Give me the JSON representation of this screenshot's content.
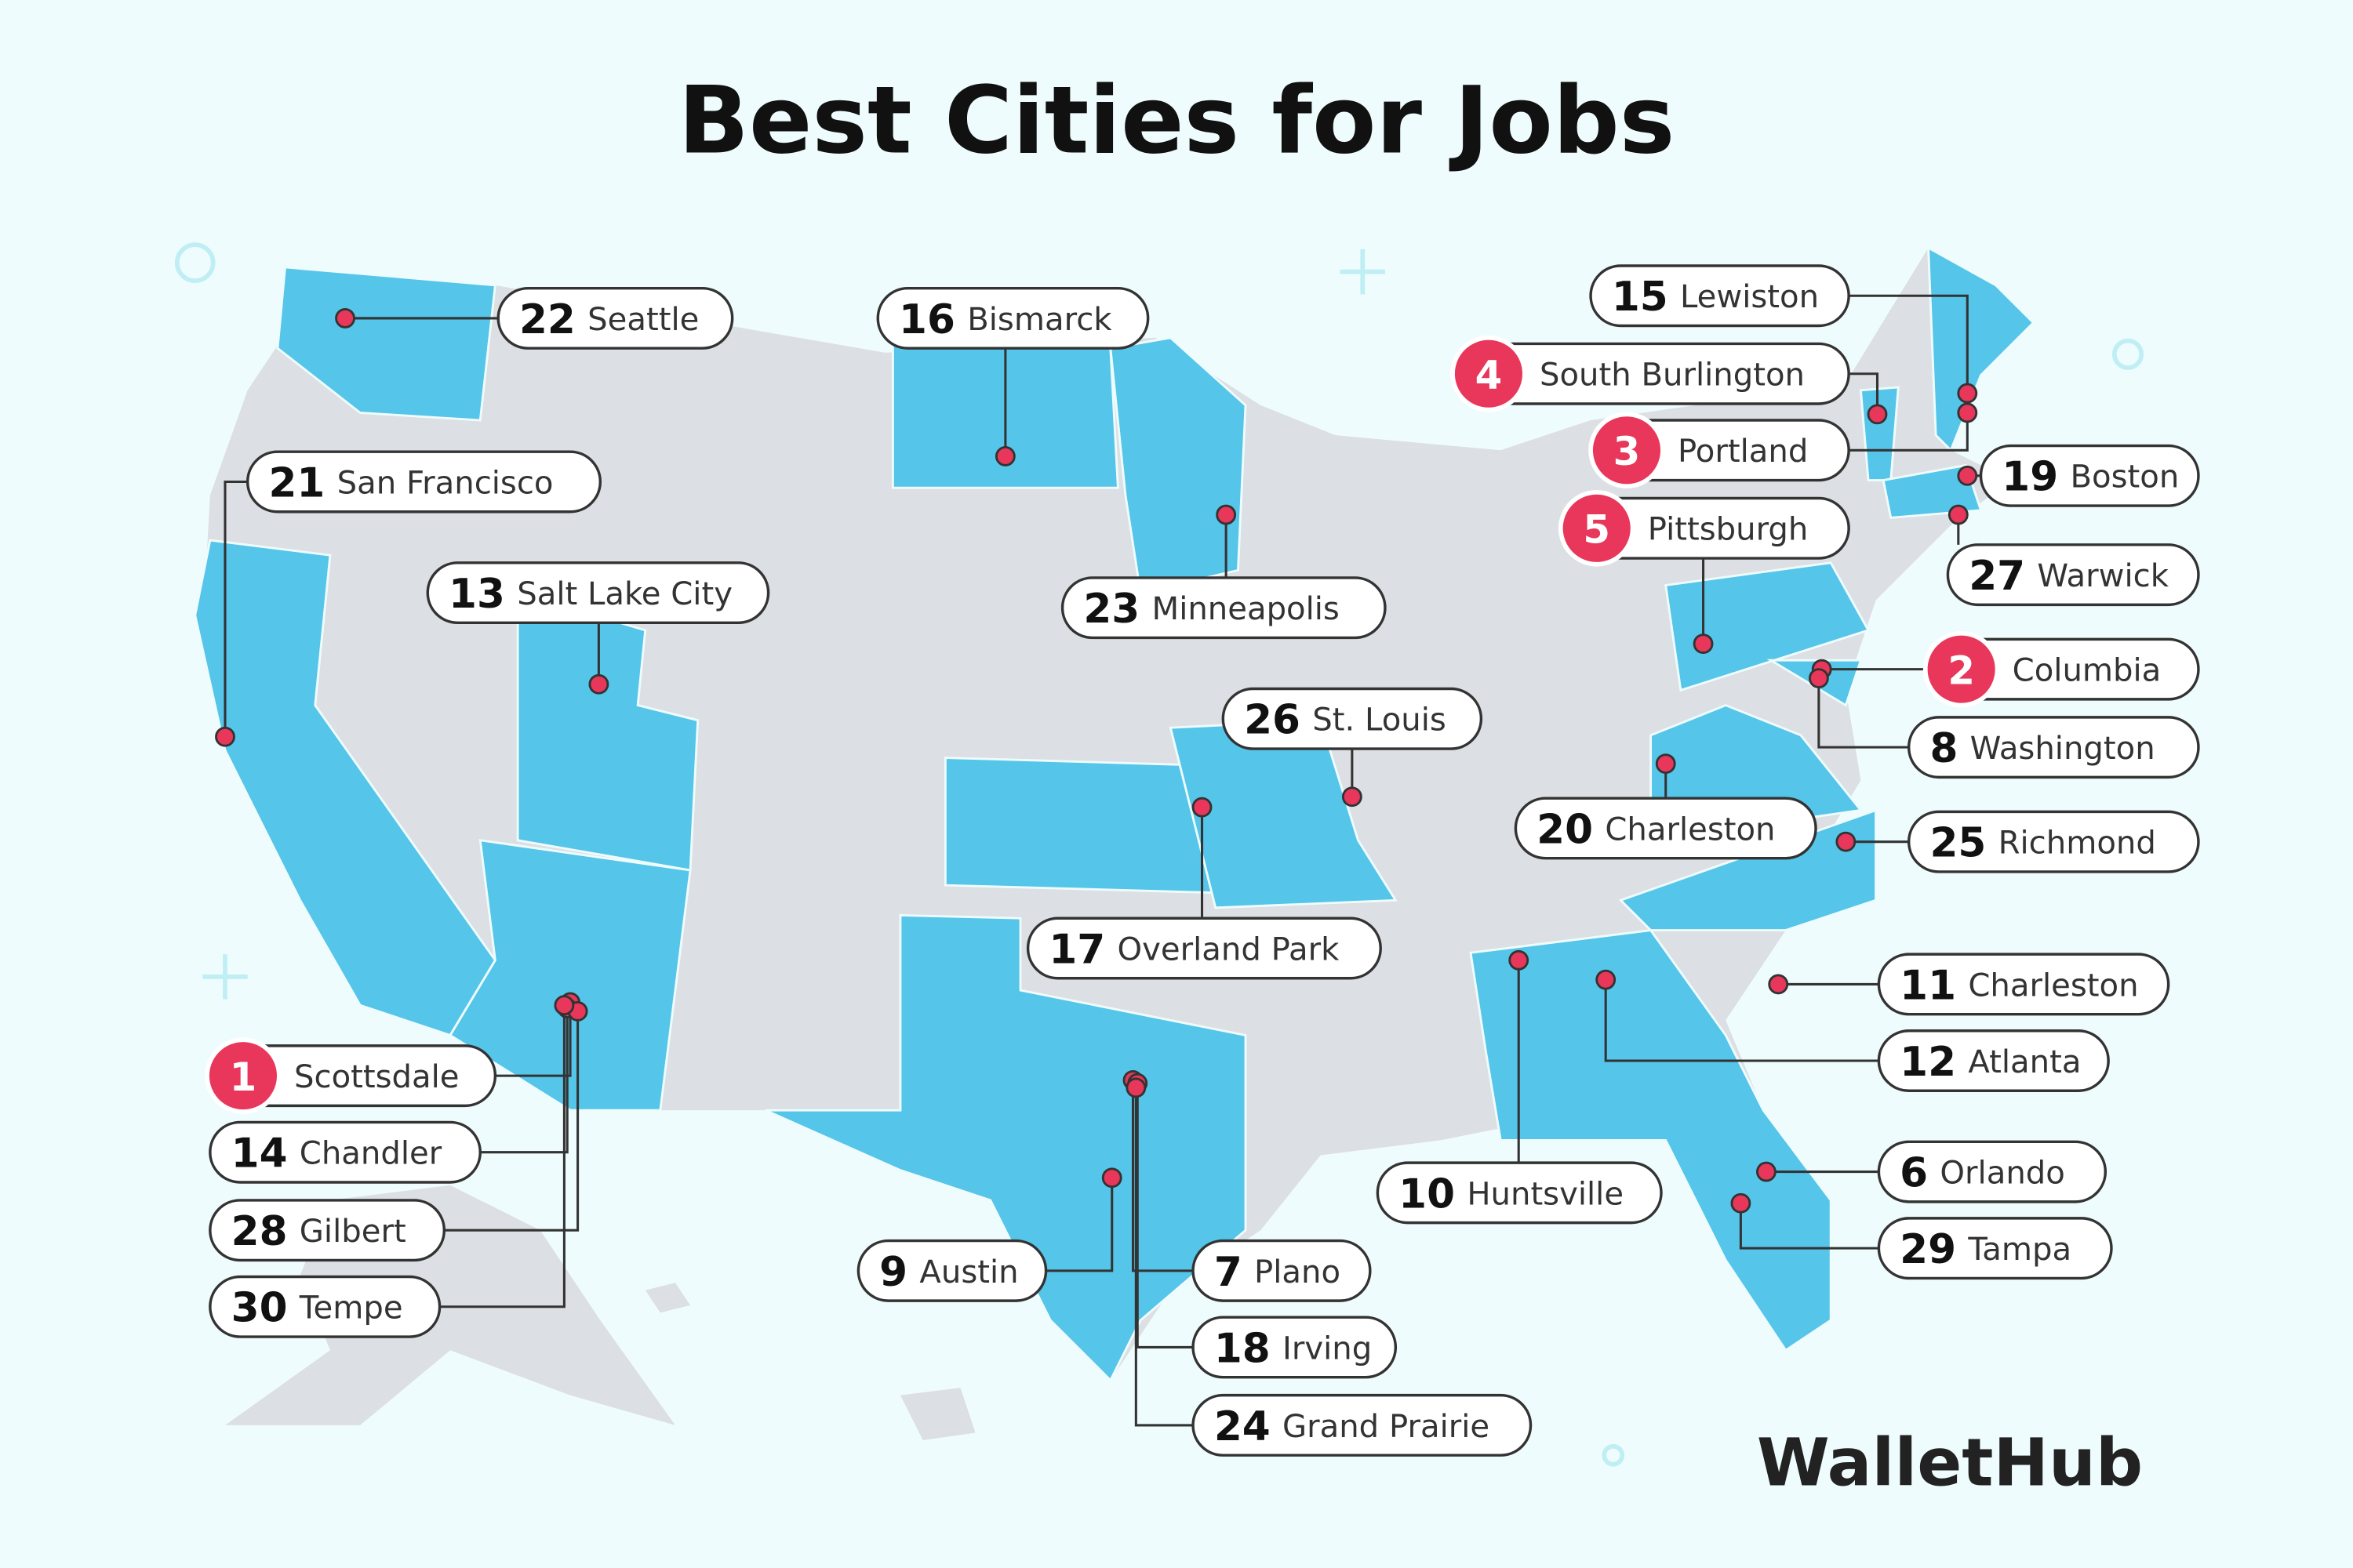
{
  "header": {
    "title": "Best Cities for Jobs"
  },
  "cities": [
    {
      "rank": 1,
      "name": "Scottsdale"
    },
    {
      "rank": 2,
      "name": "Columbia"
    },
    {
      "rank": 3,
      "name": "Portland"
    },
    {
      "rank": 4,
      "name": "South Burlington"
    },
    {
      "rank": 5,
      "name": "Pittsburgh"
    },
    {
      "rank": 6,
      "name": "Orlando"
    },
    {
      "rank": 7,
      "name": "Plano"
    },
    {
      "rank": 8,
      "name": "Washington"
    },
    {
      "rank": 9,
      "name": "Austin"
    },
    {
      "rank": 10,
      "name": "Huntsville"
    },
    {
      "rank": 11,
      "name": "Charleston"
    },
    {
      "rank": 12,
      "name": "Atlanta"
    },
    {
      "rank": 13,
      "name": "Salt Lake City"
    },
    {
      "rank": 14,
      "name": "Chandler"
    },
    {
      "rank": 15,
      "name": "Lewiston"
    },
    {
      "rank": 16,
      "name": "Bismarck"
    },
    {
      "rank": 17,
      "name": "Overland Park"
    },
    {
      "rank": 18,
      "name": "Irving"
    },
    {
      "rank": 19,
      "name": "Boston"
    },
    {
      "rank": 20,
      "name": "Charleston"
    },
    {
      "rank": 21,
      "name": "San Francisco"
    },
    {
      "rank": 22,
      "name": "Seattle"
    },
    {
      "rank": 23,
      "name": "Minneapolis"
    },
    {
      "rank": 24,
      "name": "Grand Prairie"
    },
    {
      "rank": 25,
      "name": "Richmond"
    },
    {
      "rank": 26,
      "name": "St. Louis"
    },
    {
      "rank": 27,
      "name": "Warwick"
    },
    {
      "rank": 28,
      "name": "Gilbert"
    },
    {
      "rank": 29,
      "name": "Tampa"
    },
    {
      "rank": 30,
      "name": "Tempe"
    }
  ],
  "brand": "WalletHub"
}
